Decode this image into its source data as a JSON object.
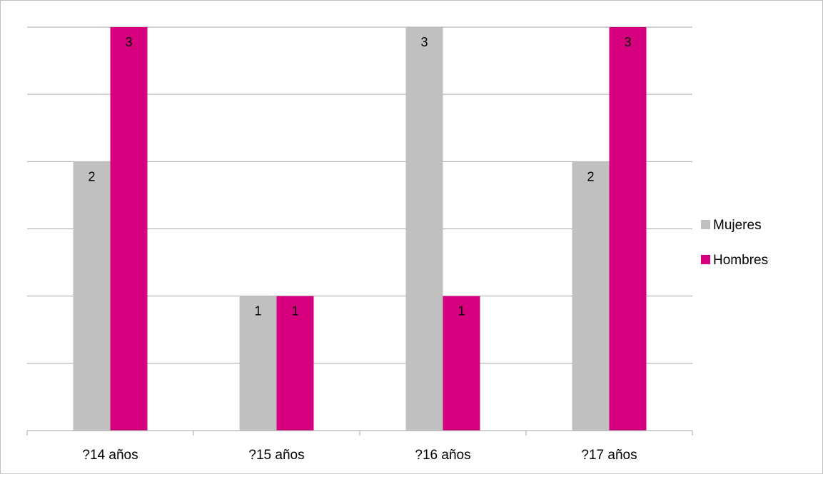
{
  "chart_data": {
    "type": "bar",
    "categories": [
      "?14 años",
      "?15 años",
      "?16 años",
      "?17 años"
    ],
    "series": [
      {
        "name": "Mujeres",
        "color": "#c0c0c0",
        "values": [
          2,
          1,
          3,
          2
        ]
      },
      {
        "name": "Hombres",
        "color": "#d6007e",
        "values": [
          3,
          1,
          1,
          3
        ]
      }
    ],
    "ylim": [
      0,
      3
    ],
    "gridlines": true,
    "legend_position": "right",
    "data_labels": true
  }
}
